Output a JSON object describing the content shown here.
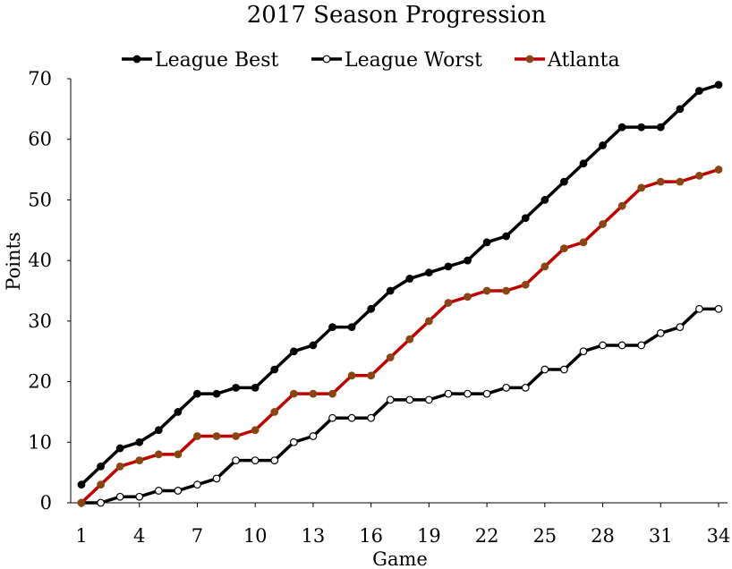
{
  "chart_data": {
    "type": "line",
    "title": "2017 Season Progression",
    "xlabel": "Game",
    "ylabel": "Points",
    "xlim": [
      1,
      34
    ],
    "ylim": [
      0,
      70
    ],
    "x_ticks": [
      1,
      4,
      7,
      10,
      13,
      16,
      19,
      22,
      25,
      28,
      31,
      34
    ],
    "y_ticks": [
      0,
      10,
      20,
      30,
      40,
      50,
      60,
      70
    ],
    "grid": false,
    "legend_position": "top",
    "x": [
      1,
      2,
      3,
      4,
      5,
      6,
      7,
      8,
      9,
      10,
      11,
      12,
      13,
      14,
      15,
      16,
      17,
      18,
      19,
      20,
      21,
      22,
      23,
      24,
      25,
      26,
      27,
      28,
      29,
      30,
      31,
      32,
      33,
      34
    ],
    "series": [
      {
        "name": "League Best",
        "color": "#000000",
        "marker_fill": "#000000",
        "values": [
          3,
          6,
          9,
          10,
          12,
          15,
          18,
          18,
          19,
          19,
          22,
          25,
          26,
          29,
          29,
          32,
          35,
          37,
          38,
          39,
          40,
          43,
          44,
          47,
          50,
          53,
          56,
          59,
          62,
          62,
          62,
          65,
          68,
          69
        ]
      },
      {
        "name": "League Worst",
        "color": "#000000",
        "marker_fill": "#ffffff",
        "values": [
          0,
          0,
          1,
          1,
          2,
          2,
          3,
          4,
          7,
          7,
          7,
          10,
          11,
          14,
          14,
          14,
          17,
          17,
          17,
          18,
          18,
          18,
          19,
          19,
          22,
          22,
          25,
          26,
          26,
          26,
          28,
          29,
          32,
          32
        ]
      },
      {
        "name": "Atlanta",
        "color": "#c00000",
        "marker_fill": "#8b4513",
        "values": [
          0,
          3,
          6,
          7,
          8,
          8,
          11,
          11,
          11,
          12,
          15,
          18,
          18,
          18,
          21,
          21,
          24,
          27,
          30,
          33,
          34,
          35,
          35,
          36,
          39,
          42,
          43,
          46,
          49,
          52,
          53,
          53,
          54,
          55
        ]
      }
    ]
  }
}
